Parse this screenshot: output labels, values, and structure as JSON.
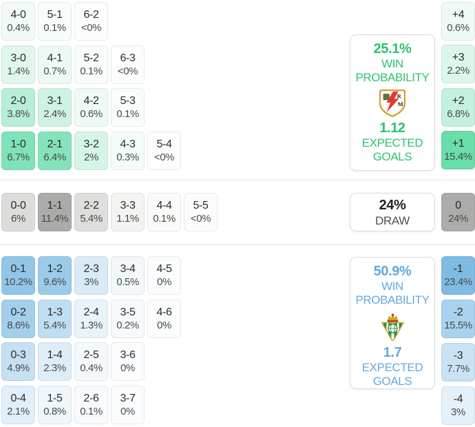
{
  "chart_data": {
    "type": "heatmap",
    "description": "Match exact-score probability matrix with win/draw/loss sections and goal-margin distribution",
    "home": {
      "team": "Rayo Vallecano",
      "accent_color": "#2bc36e",
      "win_probability": "25.1%",
      "win_label_line1": "WIN",
      "win_label_line2": "PROBABILITY",
      "expected_goals": "1.12",
      "expected_label_line1": "EXPECTED",
      "expected_label_line2": "GOALS",
      "score_rows": [
        [
          {
            "score": "4-0",
            "pct": "0.4%",
            "bg": "#f3fbf7"
          },
          {
            "score": "5-1",
            "pct": "0.1%",
            "bg": "#f8fdfb"
          },
          {
            "score": "6-2",
            "pct": "<0%",
            "bg": "#fcfefd"
          }
        ],
        [
          {
            "score": "3-0",
            "pct": "1.4%",
            "bg": "#dff7ec"
          },
          {
            "score": "4-1",
            "pct": "0.7%",
            "bg": "#edfaf4"
          },
          {
            "score": "5-2",
            "pct": "0.1%",
            "bg": "#f8fdfb"
          },
          {
            "score": "6-3",
            "pct": "<0%",
            "bg": "#fcfefd"
          }
        ],
        [
          {
            "score": "2-0",
            "pct": "3.8%",
            "bg": "#b7eed6"
          },
          {
            "score": "3-1",
            "pct": "2.4%",
            "bg": "#cff3e2"
          },
          {
            "score": "4-2",
            "pct": "0.6%",
            "bg": "#effaf5"
          },
          {
            "score": "5-3",
            "pct": "0.1%",
            "bg": "#f8fdfb"
          }
        ],
        [
          {
            "score": "1-0",
            "pct": "6.7%",
            "bg": "#7fe2b8"
          },
          {
            "score": "2-1",
            "pct": "6.4%",
            "bg": "#84e3bb"
          },
          {
            "score": "3-2",
            "pct": "2%",
            "bg": "#d5f5e7"
          },
          {
            "score": "4-3",
            "pct": "0.3%",
            "bg": "#f4fcf8"
          },
          {
            "score": "5-4",
            "pct": "<0%",
            "bg": "#fcfefd"
          }
        ]
      ]
    },
    "draw": {
      "probability": "24%",
      "label": "DRAW",
      "score_cells": [
        {
          "score": "0-0",
          "pct": "6%",
          "bg": "#dcdcda"
        },
        {
          "score": "1-1",
          "pct": "11.4%",
          "bg": "#ababa9"
        },
        {
          "score": "2-2",
          "pct": "5.4%",
          "bg": "#dededc"
        },
        {
          "score": "3-3",
          "pct": "1.1%",
          "bg": "#f3f3f1"
        },
        {
          "score": "4-4",
          "pct": "0.1%",
          "bg": "#fafaf8"
        },
        {
          "score": "5-5",
          "pct": "<0%",
          "bg": "#fcfcfb"
        }
      ]
    },
    "away": {
      "team": "Real Betis",
      "accent_color": "#66a9db",
      "win_probability": "50.9%",
      "win_label_line1": "WIN",
      "win_label_line2": "PROBABILITY",
      "expected_goals": "1.7",
      "expected_label_line1": "EXPECTED",
      "expected_label_line2": "GOALS",
      "score_rows": [
        [
          {
            "score": "0-1",
            "pct": "10.2%",
            "bg": "#92c6e8"
          },
          {
            "score": "1-2",
            "pct": "9.6%",
            "bg": "#9bcbea"
          },
          {
            "score": "2-3",
            "pct": "3%",
            "bg": "#d8ebf7"
          },
          {
            "score": "3-4",
            "pct": "0.5%",
            "bg": "#f2f8fc"
          },
          {
            "score": "4-5",
            "pct": "0%",
            "bg": "#fafcfe"
          }
        ],
        [
          {
            "score": "0-2",
            "pct": "8.6%",
            "bg": "#a3cfeb"
          },
          {
            "score": "1-3",
            "pct": "5.4%",
            "bg": "#c0def2"
          },
          {
            "score": "2-4",
            "pct": "1.3%",
            "bg": "#e8f3fa"
          },
          {
            "score": "3-5",
            "pct": "0.2%",
            "bg": "#f6fafd"
          },
          {
            "score": "4-6",
            "pct": "0%",
            "bg": "#fafcfe"
          }
        ],
        [
          {
            "score": "0-3",
            "pct": "4.9%",
            "bg": "#c5e0f3"
          },
          {
            "score": "1-4",
            "pct": "2.3%",
            "bg": "#deeef8"
          },
          {
            "score": "2-5",
            "pct": "0.4%",
            "bg": "#f3f9fd"
          },
          {
            "score": "3-6",
            "pct": "0%",
            "bg": "#fafcfe"
          }
        ],
        [
          {
            "score": "0-4",
            "pct": "2.1%",
            "bg": "#e0eff9"
          },
          {
            "score": "1-5",
            "pct": "0.8%",
            "bg": "#eff6fc"
          },
          {
            "score": "2-6",
            "pct": "0.1%",
            "bg": "#f8fbfd"
          },
          {
            "score": "3-7",
            "pct": "0%",
            "bg": "#fafcfe"
          }
        ]
      ]
    },
    "goal_margins": [
      {
        "label": "+4",
        "pct": "0.6%",
        "bg": "#f0faf5"
      },
      {
        "label": "+3",
        "pct": "2.2%",
        "bg": "#dcf6ea"
      },
      {
        "label": "+2",
        "pct": "6.8%",
        "bg": "#c4f1de"
      },
      {
        "label": "+1",
        "pct": "15.4%",
        "bg": "#69dea9"
      },
      {
        "label": "0",
        "pct": "24%",
        "bg": "#acacaa"
      },
      {
        "label": "-1",
        "pct": "23.4%",
        "bg": "#7fbce4"
      },
      {
        "label": "-2",
        "pct": "15.5%",
        "bg": "#a8d2ed"
      },
      {
        "label": "-3",
        "pct": "7.7%",
        "bg": "#cae3f4"
      },
      {
        "label": "-4",
        "pct": "3%",
        "bg": "#e4f1fa"
      }
    ]
  }
}
